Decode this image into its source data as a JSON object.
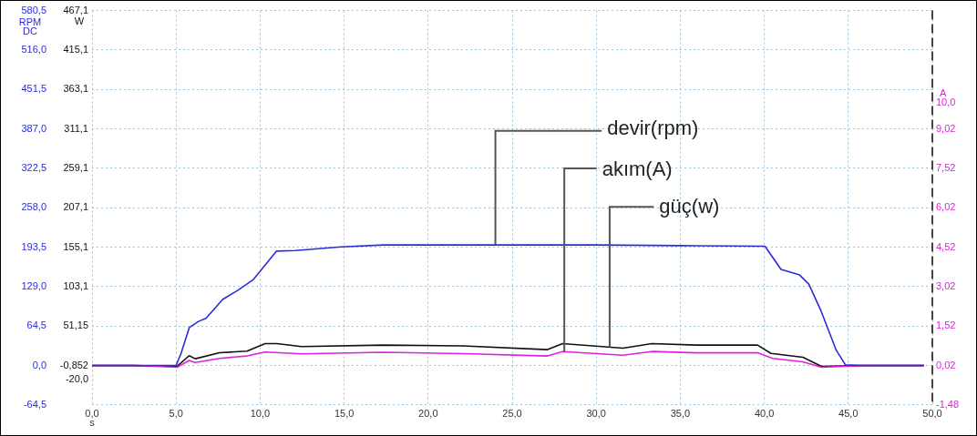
{
  "chart_data": {
    "type": "line",
    "xlabel": "s",
    "ylabel": "RPM DC",
    "y3label": "W",
    "y2label": "A",
    "grid": true,
    "xlim": [
      0,
      50
    ],
    "xticks": [
      {
        "value": 0,
        "label": "0,0"
      },
      {
        "value": 5,
        "label": "5,0"
      },
      {
        "value": 10,
        "label": "10,0"
      },
      {
        "value": 15,
        "label": "15,0"
      },
      {
        "value": 20,
        "label": "20,0"
      },
      {
        "value": 25,
        "label": "25,0"
      },
      {
        "value": 30,
        "label": "30,0"
      },
      {
        "value": 35,
        "label": "35,0"
      },
      {
        "value": 40,
        "label": "40,0"
      },
      {
        "value": 45,
        "label": "45,0"
      },
      {
        "value": 50,
        "label": "50,0"
      }
    ],
    "ylim": [
      -64.5,
      580.5
    ],
    "yticks": [
      {
        "value": -64.5,
        "label": "-64,5"
      },
      {
        "value": 0,
        "label": "0,0"
      },
      {
        "value": 64.5,
        "label": "64,5"
      },
      {
        "value": 129,
        "label": "129,0"
      },
      {
        "value": 193.5,
        "label": "193,5"
      },
      {
        "value": 258,
        "label": "258,0"
      },
      {
        "value": 322.5,
        "label": "322,5"
      },
      {
        "value": 387,
        "label": "387,0"
      },
      {
        "value": 451.5,
        "label": "451,5"
      },
      {
        "value": 516,
        "label": "516,0"
      },
      {
        "value": 580.5,
        "label": "580,5"
      }
    ],
    "y3lim": [
      -52.852,
      467.148
    ],
    "y3ticks": [
      {
        "value": -20,
        "label": "-20,0"
      },
      {
        "value": -0.852,
        "label": "-0,852"
      },
      {
        "value": 51.15,
        "label": "51,15"
      },
      {
        "value": 103.1,
        "label": "103,1"
      },
      {
        "value": 155.1,
        "label": "155,1"
      },
      {
        "value": 207.1,
        "label": "207,1"
      },
      {
        "value": 259.1,
        "label": "259,1"
      },
      {
        "value": 311.1,
        "label": "311,1"
      },
      {
        "value": 363.1,
        "label": "363,1"
      },
      {
        "value": 415.1,
        "label": "415,1"
      },
      {
        "value": 467.1,
        "label": "467,1"
      }
    ],
    "y2lim": [
      -1.48,
      13.52
    ],
    "y2ticks": [
      {
        "value": -1.48,
        "label": "-1,48"
      },
      {
        "value": 0.02,
        "label": "0,02"
      },
      {
        "value": 1.52,
        "label": "1,52"
      },
      {
        "value": 3.02,
        "label": "3,02"
      },
      {
        "value": 4.52,
        "label": "4,52"
      },
      {
        "value": 6.02,
        "label": "6,02"
      },
      {
        "value": 7.52,
        "label": "7,52"
      },
      {
        "value": 9.02,
        "label": "9,02"
      },
      {
        "value": 10,
        "label": "10,0"
      }
    ],
    "series": [
      {
        "name": "devir(rpm)",
        "color": "#2b2bd9",
        "axis": "y",
        "x": [
          0,
          2.5,
          5.0,
          5.3,
          5.79,
          6.33,
          6.78,
          7.77,
          8.68,
          9.58,
          10.97,
          12.1,
          14.8,
          17.35,
          20,
          25,
          30,
          35,
          40.04,
          41.0,
          42.1,
          42.65,
          43.38,
          44.28,
          44.83,
          46,
          49.5
        ],
        "values": [
          0,
          0,
          0,
          20,
          62,
          72,
          77,
          108,
          123,
          140,
          187,
          188,
          194,
          197,
          197,
          197,
          197,
          196,
          195,
          157,
          148,
          133,
          89,
          25,
          1,
          0,
          0
        ]
      },
      {
        "name": "akım(A)",
        "color": "#e020e0",
        "axis": "y2",
        "x": [
          0,
          2.5,
          5.06,
          5.78,
          6.14,
          7.59,
          9.22,
          10.3,
          12.47,
          17.35,
          22,
          27.1,
          28.0,
          31.6,
          33.3,
          36,
          39.6,
          40.5,
          42.3,
          43.4,
          46,
          49.5
        ],
        "values": [
          0.02,
          0.02,
          -0.05,
          0.21,
          0.13,
          0.29,
          0.38,
          0.53,
          0.46,
          0.52,
          0.47,
          0.38,
          0.55,
          0.41,
          0.55,
          0.5,
          0.5,
          0.29,
          0.16,
          -0.05,
          0.02,
          0.02
        ]
      },
      {
        "name": "güç(w)",
        "color": "#111111",
        "axis": "y3",
        "x": [
          0,
          2.5,
          5.06,
          5.78,
          6.14,
          7.59,
          9.22,
          10.3,
          11.0,
          12.47,
          17.35,
          22,
          27.1,
          28.0,
          31.6,
          33.3,
          36,
          39.6,
          40.4,
          42.3,
          43.4,
          46,
          49.5
        ],
        "values": [
          -1,
          -1,
          -2,
          12,
          8,
          16,
          18,
          28,
          28,
          24,
          26,
          25,
          20,
          28,
          22,
          28,
          26,
          26,
          15,
          10,
          -2,
          -1,
          -1
        ]
      }
    ]
  }
}
